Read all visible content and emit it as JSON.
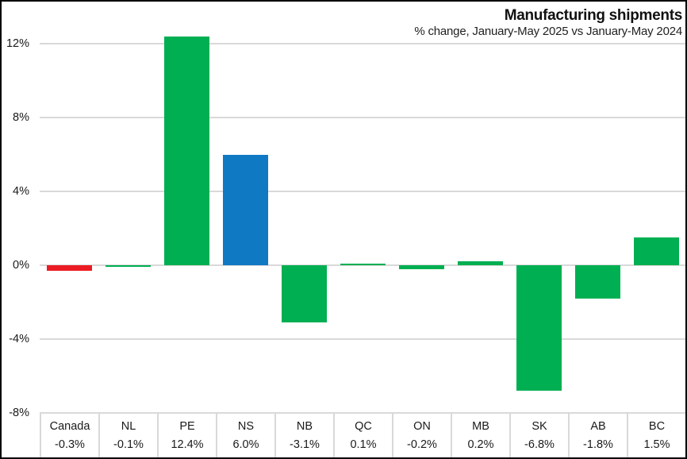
{
  "chart_data": {
    "type": "bar",
    "title": "Manufacturing shipments",
    "subtitle": "% change, January-May 2025 vs January-May 2024",
    "categories": [
      "Canada",
      "NL",
      "PE",
      "NS",
      "NB",
      "QC",
      "ON",
      "MB",
      "SK",
      "AB",
      "BC"
    ],
    "values": [
      -0.3,
      -0.1,
      12.4,
      6.0,
      -3.1,
      0.1,
      -0.2,
      0.2,
      -6.8,
      -1.8,
      1.5
    ],
    "value_labels": [
      "-0.3%",
      "-0.1%",
      "12.4%",
      "6.0%",
      "-3.1%",
      "0.1%",
      "-0.2%",
      "0.2%",
      "-6.8%",
      "-1.8%",
      "1.5%"
    ],
    "bar_colors": [
      "#EC1C24",
      "#00AF52",
      "#00AF52",
      "#0F79C4",
      "#00AF52",
      "#00AF52",
      "#00AF52",
      "#00AF52",
      "#00AF52",
      "#00AF52",
      "#00AF52"
    ],
    "y_axis": {
      "tick_labels": [
        "12%",
        "8%",
        "4%",
        "0%",
        "-4%",
        "-8%"
      ],
      "tick_values": [
        12,
        8,
        4,
        0,
        -4,
        -8
      ],
      "range": [
        -8,
        12.4
      ]
    },
    "xlabel": "",
    "ylabel": "",
    "grid": "horizontal-gridlines-on",
    "legend": "none",
    "palette": {
      "canada_red": "#EC1C24",
      "province_green": "#00AF52",
      "nova_scotia_blue": "#0F79C4",
      "gridline_gray": "#D9D9D9",
      "text_black": "#1A1A1A"
    }
  }
}
